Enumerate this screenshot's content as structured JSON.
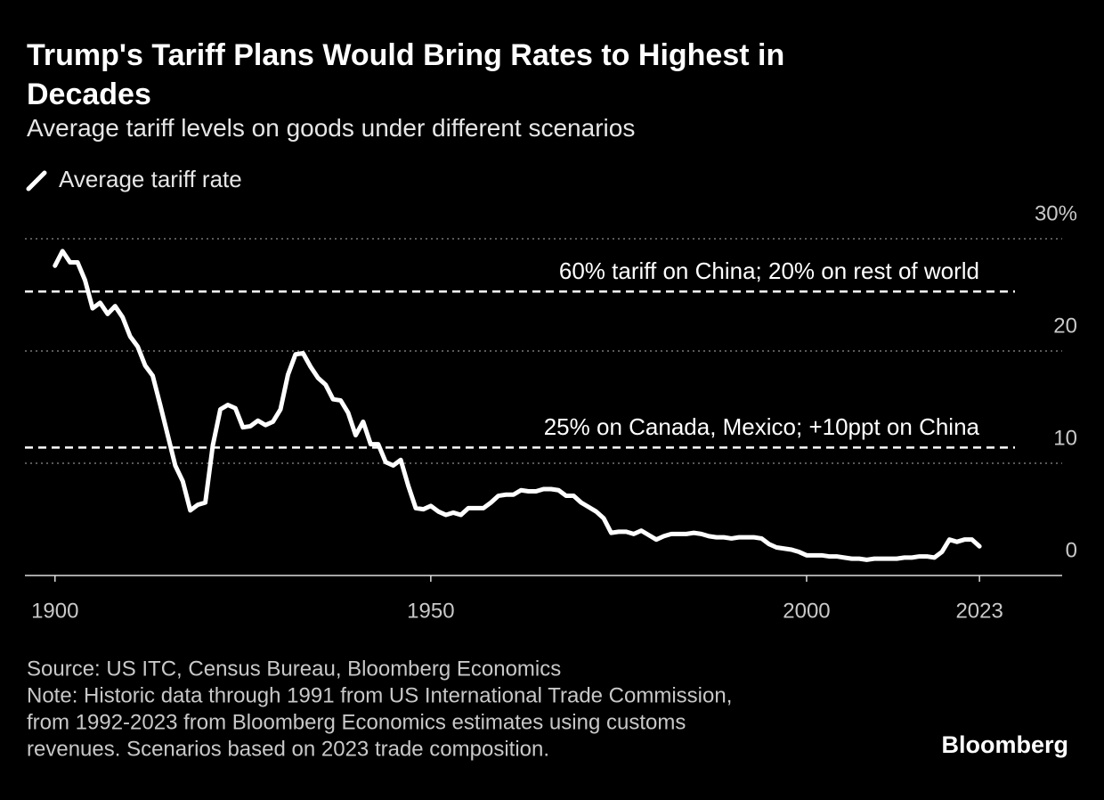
{
  "chart_data": {
    "type": "line",
    "title": "Trump's Tariff Plans Would Bring Rates to Highest in Decades",
    "subtitle": "Average tariff levels on goods under different scenarios",
    "x": [
      1900,
      1901,
      1902,
      1903,
      1904,
      1905,
      1906,
      1907,
      1908,
      1909,
      1910,
      1911,
      1912,
      1913,
      1914,
      1915,
      1916,
      1917,
      1918,
      1919,
      1920,
      1921,
      1922,
      1923,
      1924,
      1925,
      1926,
      1927,
      1928,
      1929,
      1930,
      1931,
      1932,
      1933,
      1934,
      1935,
      1936,
      1937,
      1938,
      1939,
      1940,
      1941,
      1942,
      1943,
      1944,
      1945,
      1946,
      1947,
      1948,
      1949,
      1950,
      1951,
      1952,
      1953,
      1954,
      1955,
      1956,
      1957,
      1958,
      1959,
      1960,
      1961,
      1962,
      1963,
      1964,
      1965,
      1966,
      1967,
      1968,
      1969,
      1970,
      1971,
      1972,
      1973,
      1974,
      1975,
      1976,
      1977,
      1978,
      1979,
      1980,
      1981,
      1982,
      1983,
      1984,
      1985,
      1986,
      1987,
      1988,
      1989,
      1990,
      1991,
      1992,
      1993,
      1994,
      1995,
      1996,
      1997,
      1998,
      1999,
      2000,
      2001,
      2002,
      2003,
      2004,
      2005,
      2006,
      2007,
      2008,
      2009,
      2010,
      2011,
      2012,
      2013,
      2014,
      2015,
      2016,
      2017,
      2018,
      2019,
      2020,
      2021,
      2022,
      2023
    ],
    "series": [
      {
        "name": "Average tariff rate",
        "color": "#ffffff",
        "values": [
          27.6,
          28.9,
          27.9,
          27.9,
          26.3,
          23.8,
          24.3,
          23.3,
          24.0,
          23.0,
          21.3,
          20.4,
          18.7,
          17.8,
          15.2,
          12.5,
          9.8,
          8.4,
          5.8,
          6.3,
          6.5,
          11.6,
          14.8,
          15.2,
          14.9,
          13.2,
          13.3,
          13.8,
          13.4,
          13.7,
          14.8,
          17.9,
          19.7,
          19.8,
          18.6,
          17.6,
          17.0,
          15.7,
          15.6,
          14.5,
          12.5,
          13.7,
          11.7,
          11.7,
          10.1,
          9.8,
          10.3,
          8.0,
          6.0,
          5.9,
          6.2,
          5.7,
          5.4,
          5.6,
          5.4,
          6.0,
          6.0,
          6.0,
          6.5,
          7.1,
          7.2,
          7.2,
          7.6,
          7.5,
          7.5,
          7.7,
          7.7,
          7.6,
          7.1,
          7.1,
          6.5,
          6.1,
          5.7,
          5.1,
          3.8,
          3.9,
          3.9,
          3.7,
          4.0,
          3.6,
          3.2,
          3.5,
          3.7,
          3.7,
          3.7,
          3.8,
          3.7,
          3.5,
          3.4,
          3.4,
          3.3,
          3.4,
          3.4,
          3.4,
          3.3,
          2.8,
          2.5,
          2.4,
          2.3,
          2.1,
          1.8,
          1.8,
          1.8,
          1.7,
          1.7,
          1.6,
          1.5,
          1.5,
          1.4,
          1.5,
          1.5,
          1.5,
          1.5,
          1.6,
          1.6,
          1.7,
          1.7,
          1.6,
          2.1,
          3.2,
          3.0,
          3.2,
          3.2,
          2.6
        ]
      }
    ],
    "annotations": [
      {
        "label": "60% tariff on China; 20% on rest of world",
        "value": 25.3
      },
      {
        "label": "25% on Canada, Mexico; +10ppt on China",
        "value": 11.4
      }
    ],
    "xlim": [
      1896,
      2034
    ],
    "xticks": [
      1900,
      1950,
      2000,
      2023
    ],
    "ylim": [
      0,
      30
    ],
    "yticks": [
      0,
      10,
      20,
      {
        "value": 30,
        "label": "30%"
      }
    ],
    "grid": true
  },
  "footer": {
    "source": "Source: US ITC, Census Bureau, Bloomberg Economics",
    "note": [
      "Note: Historic data through 1991 from US International Trade Commission,",
      "from 1992-2023 from Bloomberg Economics estimates using customs",
      "revenues. Scenarios based on 2023 trade composition."
    ],
    "logo": "Bloomberg"
  }
}
